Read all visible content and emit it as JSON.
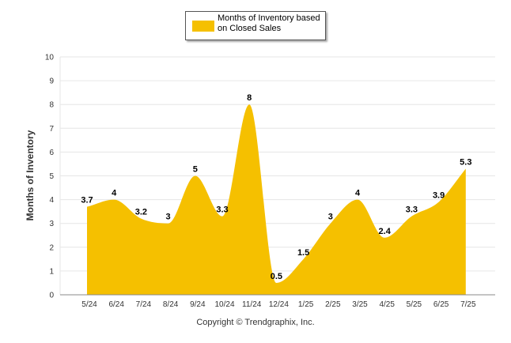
{
  "legend": {
    "label": "Months of Inventory based on Closed Sales"
  },
  "copyright": "Copyright © Trendgraphix, Inc.",
  "colors": {
    "series": "#f5c000",
    "grid": "#e6e6e6",
    "axis": "#888888",
    "tick_text": "#333333"
  },
  "chart_data": {
    "type": "area",
    "title": "",
    "xlabel": "",
    "ylabel": "Months of Inventory",
    "ylim": [
      0,
      10
    ],
    "yticks": [
      0,
      1,
      2,
      3,
      4,
      5,
      6,
      7,
      8,
      9,
      10
    ],
    "grid": true,
    "legend_position": "top-center",
    "categories": [
      "5/24",
      "6/24",
      "7/24",
      "8/24",
      "9/24",
      "10/24",
      "11/24",
      "12/24",
      "1/25",
      "2/25",
      "3/25",
      "4/25",
      "5/25",
      "6/25",
      "7/25"
    ],
    "series": [
      {
        "name": "Months of Inventory based on Closed Sales",
        "values": [
          3.7,
          4,
          3.2,
          3,
          5,
          3.3,
          8,
          0.5,
          1.5,
          3,
          4,
          2.4,
          3.3,
          3.9,
          5.3
        ],
        "labels": [
          "3.7",
          "4",
          "3.2",
          "3",
          "5",
          "3.3",
          "8",
          "0.5",
          "1.5",
          "3",
          "4",
          "2.4",
          "3.3",
          "3.9",
          "5.3"
        ]
      }
    ]
  }
}
